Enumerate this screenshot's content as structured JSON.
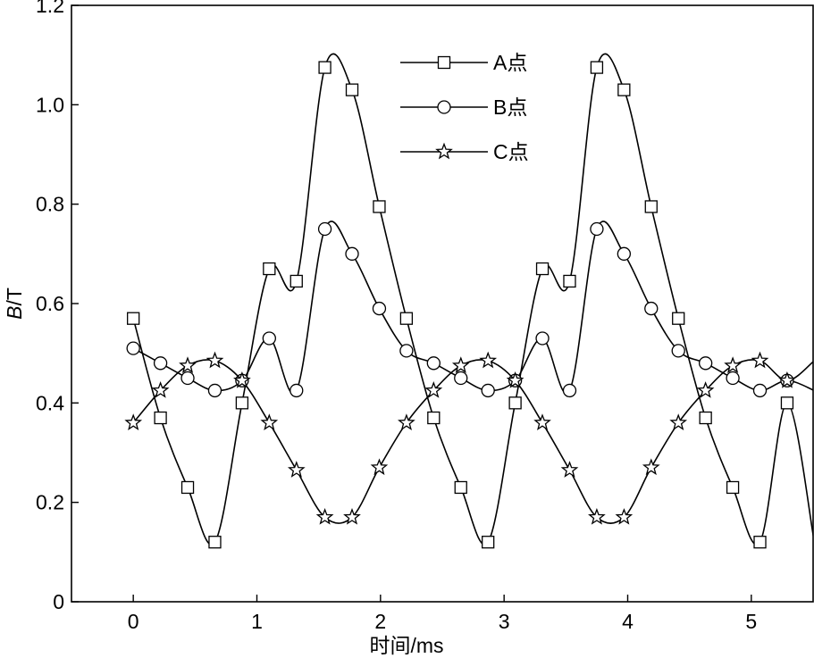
{
  "chart_data": {
    "type": "line",
    "xlabel": "时间/ms",
    "ylabel_italic": "B",
    "ylabel_unit": "/T",
    "xlim": [
      -0.5,
      5.5
    ],
    "ylim": [
      0,
      1.2
    ],
    "xticks": [
      "0",
      "1",
      "2",
      "3",
      "4",
      "5"
    ],
    "yticks": [
      "0",
      "0.2",
      "0.4",
      "0.6",
      "0.8",
      "1.0",
      "1.2"
    ],
    "grid": false,
    "legend_position": "top-center",
    "series": [
      {
        "name": "A点",
        "marker": "square",
        "x": [
          0,
          0.22,
          0.44,
          0.66,
          0.88,
          1.1,
          1.32,
          1.55,
          1.77,
          1.99,
          2.21,
          2.43,
          2.65,
          2.87,
          3.09,
          3.31,
          3.53,
          3.75,
          3.97,
          4.19,
          4.41,
          4.63,
          4.85,
          5.07,
          5.29
        ],
        "y": [
          0.57,
          0.37,
          0.23,
          0.12,
          0.4,
          0.67,
          0.645,
          1.075,
          1.03,
          0.795,
          0.57,
          0.37,
          0.23,
          0.12,
          0.4,
          0.67,
          0.645,
          1.075,
          1.03,
          0.795,
          0.57,
          0.37,
          0.23,
          0.12,
          0.4
        ]
      },
      {
        "name": "B点",
        "marker": "circle",
        "x": [
          0,
          0.22,
          0.44,
          0.66,
          0.88,
          1.1,
          1.32,
          1.55,
          1.77,
          1.99,
          2.21,
          2.43,
          2.65,
          2.87,
          3.09,
          3.31,
          3.53,
          3.75,
          3.97,
          4.19,
          4.41,
          4.63,
          4.85,
          5.07,
          5.29
        ],
        "y": [
          0.51,
          0.48,
          0.45,
          0.425,
          0.445,
          0.53,
          0.425,
          0.75,
          0.7,
          0.59,
          0.505,
          0.48,
          0.45,
          0.425,
          0.445,
          0.53,
          0.425,
          0.75,
          0.7,
          0.59,
          0.505,
          0.48,
          0.45,
          0.425,
          0.445
        ]
      },
      {
        "name": "C点",
        "marker": "star",
        "x": [
          0,
          0.22,
          0.44,
          0.66,
          0.88,
          1.1,
          1.32,
          1.55,
          1.77,
          1.99,
          2.21,
          2.43,
          2.65,
          2.87,
          3.09,
          3.31,
          3.53,
          3.75,
          3.97,
          4.19,
          4.41,
          4.63,
          4.85,
          5.07,
          5.29
        ],
        "y": [
          0.36,
          0.425,
          0.475,
          0.485,
          0.445,
          0.36,
          0.265,
          0.17,
          0.17,
          0.27,
          0.36,
          0.425,
          0.475,
          0.485,
          0.445,
          0.36,
          0.265,
          0.17,
          0.17,
          0.27,
          0.36,
          0.425,
          0.475,
          0.485,
          0.445
        ]
      }
    ]
  }
}
